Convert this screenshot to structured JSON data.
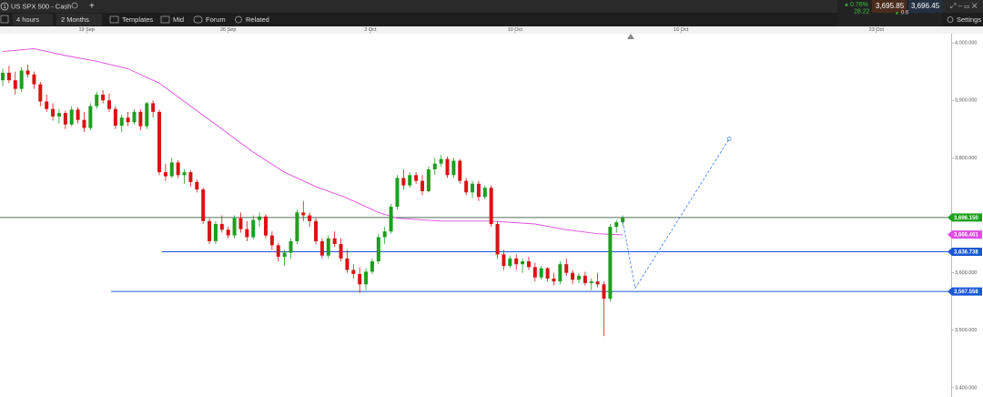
{
  "header": {
    "tab": "US SPX 500 - Cash",
    "tab_number": "1"
  },
  "toolbar": {
    "interval": "4 hours",
    "range": "2 Months",
    "items": [
      "Templates",
      "Mid",
      "Forum",
      "Related"
    ],
    "settings": "Settings"
  },
  "quote": {
    "change_pct": "0.76%",
    "change": "28.22",
    "sell": "3,695.85",
    "buy": "3,696.45",
    "spread": "0.6"
  },
  "chart_data": {
    "type": "candlestick",
    "up_color": "#1e9e1e",
    "down_color": "#d81414",
    "xlim": [
      -0.44,
      151.45
    ],
    "ylim": [
      3384,
      4016
    ],
    "xticks": [
      {
        "value": 13.4,
        "label": "19 Sep"
      },
      {
        "value": 36.0,
        "label": "26 Sep"
      },
      {
        "value": 58.7,
        "label": "3 Oct"
      },
      {
        "value": 81.8,
        "label": "10 Oct"
      },
      {
        "value": 108.3,
        "label": "16 Oct"
      },
      {
        "value": 139.5,
        "label": "23 Oct"
      }
    ],
    "yticks": [
      {
        "value": 4000,
        "label": "4,000.000"
      },
      {
        "value": 3900,
        "label": "3,900.000"
      },
      {
        "value": 3800,
        "label": "3,800.000"
      },
      {
        "value": 3600,
        "label": "3,600.000"
      },
      {
        "value": 3500,
        "label": "3,500.000"
      },
      {
        "value": 3400,
        "label": "3,400.000"
      }
    ],
    "candles": [
      [
        3935,
        3955,
        3925,
        3948
      ],
      [
        3948,
        3960,
        3930,
        3935
      ],
      [
        3935,
        3950,
        3910,
        3920
      ],
      [
        3920,
        3958,
        3915,
        3952
      ],
      [
        3952,
        3962,
        3940,
        3945
      ],
      [
        3945,
        3950,
        3920,
        3928
      ],
      [
        3928,
        3932,
        3890,
        3898
      ],
      [
        3898,
        3910,
        3880,
        3885
      ],
      [
        3885,
        3895,
        3865,
        3872
      ],
      [
        3872,
        3885,
        3860,
        3878
      ],
      [
        3878,
        3882,
        3850,
        3858
      ],
      [
        3858,
        3890,
        3855,
        3884
      ],
      [
        3884,
        3888,
        3860,
        3866
      ],
      [
        3866,
        3880,
        3845,
        3852
      ],
      [
        3852,
        3895,
        3848,
        3890
      ],
      [
        3890,
        3915,
        3885,
        3910
      ],
      [
        3910,
        3918,
        3895,
        3900
      ],
      [
        3900,
        3912,
        3880,
        3885
      ],
      [
        3885,
        3890,
        3850,
        3856
      ],
      [
        3856,
        3875,
        3845,
        3870
      ],
      [
        3870,
        3880,
        3855,
        3862
      ],
      [
        3862,
        3885,
        3858,
        3880
      ],
      [
        3880,
        3884,
        3848,
        3855
      ],
      [
        3855,
        3898,
        3850,
        3895
      ],
      [
        3895,
        3900,
        3870,
        3880
      ],
      [
        3880,
        3884,
        3770,
        3775
      ],
      [
        3775,
        3790,
        3760,
        3768
      ],
      [
        3768,
        3800,
        3765,
        3792
      ],
      [
        3792,
        3796,
        3765,
        3770
      ],
      [
        3770,
        3780,
        3755,
        3775
      ],
      [
        3775,
        3778,
        3750,
        3758
      ],
      [
        3758,
        3762,
        3740,
        3745
      ],
      [
        3745,
        3748,
        3685,
        3690
      ],
      [
        3690,
        3695,
        3650,
        3655
      ],
      [
        3655,
        3690,
        3650,
        3685
      ],
      [
        3685,
        3700,
        3670,
        3675
      ],
      [
        3675,
        3680,
        3660,
        3665
      ],
      [
        3665,
        3700,
        3660,
        3695
      ],
      [
        3695,
        3705,
        3670,
        3676
      ],
      [
        3676,
        3690,
        3655,
        3662
      ],
      [
        3662,
        3700,
        3658,
        3692
      ],
      [
        3692,
        3705,
        3680,
        3698
      ],
      [
        3698,
        3702,
        3660,
        3665
      ],
      [
        3665,
        3672,
        3640,
        3648
      ],
      [
        3648,
        3652,
        3620,
        3628
      ],
      [
        3628,
        3640,
        3612,
        3635
      ],
      [
        3635,
        3660,
        3625,
        3655
      ],
      [
        3655,
        3710,
        3650,
        3705
      ],
      [
        3705,
        3725,
        3690,
        3700
      ],
      [
        3700,
        3705,
        3680,
        3690
      ],
      [
        3690,
        3695,
        3650,
        3655
      ],
      [
        3655,
        3660,
        3625,
        3630
      ],
      [
        3630,
        3665,
        3625,
        3660
      ],
      [
        3660,
        3672,
        3645,
        3650
      ],
      [
        3650,
        3660,
        3620,
        3625
      ],
      [
        3625,
        3640,
        3600,
        3605
      ],
      [
        3605,
        3615,
        3590,
        3598
      ],
      [
        3598,
        3610,
        3565,
        3580
      ],
      [
        3580,
        3608,
        3570,
        3602
      ],
      [
        3602,
        3625,
        3598,
        3620
      ],
      [
        3620,
        3668,
        3615,
        3662
      ],
      [
        3662,
        3680,
        3650,
        3672
      ],
      [
        3672,
        3720,
        3668,
        3715
      ],
      [
        3715,
        3770,
        3710,
        3765
      ],
      [
        3765,
        3780,
        3745,
        3752
      ],
      [
        3752,
        3775,
        3748,
        3770
      ],
      [
        3770,
        3775,
        3755,
        3760
      ],
      [
        3760,
        3770,
        3735,
        3742
      ],
      [
        3742,
        3785,
        3740,
        3780
      ],
      [
        3780,
        3800,
        3770,
        3790
      ],
      [
        3790,
        3805,
        3785,
        3798
      ],
      [
        3798,
        3802,
        3765,
        3770
      ],
      [
        3770,
        3800,
        3765,
        3795
      ],
      [
        3795,
        3798,
        3755,
        3760
      ],
      [
        3760,
        3765,
        3735,
        3740
      ],
      [
        3740,
        3760,
        3730,
        3755
      ],
      [
        3755,
        3760,
        3725,
        3732
      ],
      [
        3732,
        3752,
        3728,
        3748
      ],
      [
        3748,
        3752,
        3680,
        3685
      ],
      [
        3685,
        3690,
        3625,
        3632
      ],
      [
        3632,
        3640,
        3605,
        3612
      ],
      [
        3612,
        3630,
        3608,
        3625
      ],
      [
        3625,
        3632,
        3605,
        3615
      ],
      [
        3615,
        3625,
        3600,
        3620
      ],
      [
        3620,
        3628,
        3605,
        3610
      ],
      [
        3610,
        3618,
        3585,
        3592
      ],
      [
        3592,
        3612,
        3588,
        3608
      ],
      [
        3608,
        3610,
        3585,
        3590
      ],
      [
        3590,
        3600,
        3578,
        3585
      ],
      [
        3585,
        3620,
        3580,
        3615
      ],
      [
        3615,
        3625,
        3595,
        3600
      ],
      [
        3600,
        3605,
        3580,
        3588
      ],
      [
        3588,
        3600,
        3582,
        3595
      ],
      [
        3595,
        3602,
        3578,
        3582
      ],
      [
        3582,
        3590,
        3570,
        3585
      ],
      [
        3585,
        3600,
        3575,
        3580
      ],
      [
        3580,
        3585,
        3490,
        3555
      ],
      [
        3555,
        3685,
        3550,
        3680
      ],
      [
        3680,
        3692,
        3670,
        3688
      ],
      [
        3688,
        3700,
        3682,
        3696
      ]
    ],
    "moving_average": {
      "color": "#e04de0",
      "x": [
        0,
        5,
        10,
        15,
        20,
        25,
        30,
        35,
        40,
        45,
        50,
        55,
        60,
        63,
        70,
        78,
        85,
        90,
        95,
        99
      ],
      "values": [
        3985,
        3990,
        3978,
        3968,
        3955,
        3930,
        3890,
        3850,
        3810,
        3775,
        3750,
        3730,
        3705,
        3695,
        3690,
        3690,
        3685,
        3675,
        3668,
        3666
      ],
      "last": {
        "value": 3666.461,
        "label": "3,666.461"
      }
    },
    "levels": [
      {
        "value": 3696.15,
        "label": "3,696.150",
        "color": "#1fa01f",
        "line_color": "#55705a",
        "from_x": -0.44
      },
      {
        "value": 3636.738,
        "label": "3,636.738",
        "color": "#1a56d6",
        "line_color": "#1a56d6",
        "from_x": 25.4
      },
      {
        "value": 3567.558,
        "label": "3,567.558",
        "color": "#1a56d6",
        "line_color": "#1a56d6",
        "from_x": 17.3
      }
    ],
    "projection": {
      "color": "#3b7be0",
      "x": [
        99,
        101,
        116
      ],
      "values": [
        3690,
        3573,
        3833
      ]
    }
  }
}
